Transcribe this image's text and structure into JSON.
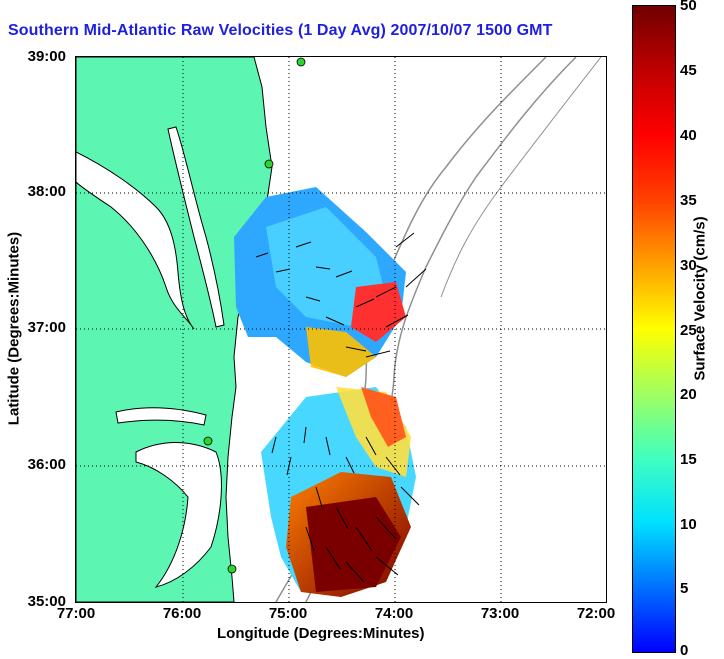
{
  "title": "Southern Mid-Atlantic Raw Velocities (1 Day Avg) 2007/10/07 1500 GMT",
  "x_axis": {
    "label": "Longitude (Degrees:Minutes)",
    "ticks": [
      "77:00",
      "76:00",
      "75:00",
      "74:00",
      "73:00",
      "72:00"
    ]
  },
  "y_axis": {
    "label": "Latitude (Degrees:Minutes)",
    "ticks": [
      "39:00",
      "38:00",
      "37:00",
      "36:00",
      "35:00"
    ]
  },
  "colorbar": {
    "label": "Surface Velocity (cm/s)",
    "ticks": [
      "50",
      "45",
      "40",
      "35",
      "30",
      "25",
      "20",
      "15",
      "10",
      "5",
      "0"
    ],
    "min": 0,
    "max": 50
  },
  "colors": {
    "title": "#1f1fe0",
    "land": "#5cf5b2",
    "station": "#2bd62b",
    "grid": "#000000",
    "bathymetry": "#909090"
  }
}
